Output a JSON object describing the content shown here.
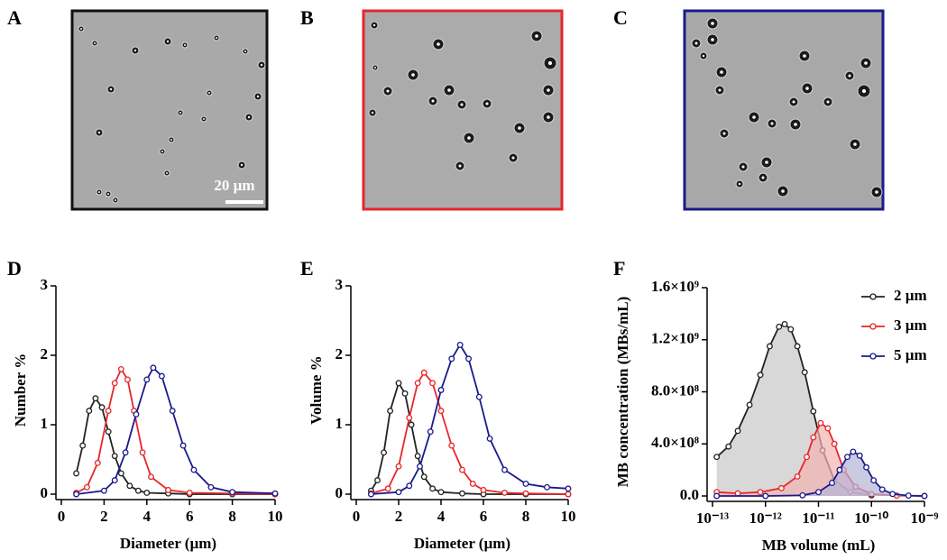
{
  "micrographs": [
    {
      "panel": "A",
      "scale_bar": "20 µm"
    },
    {
      "panel": "B"
    },
    {
      "panel": "C"
    }
  ],
  "chart_data": [
    {
      "type": "line",
      "panel": "D",
      "xlabel": "Diameter (µm)",
      "ylabel": "Number %",
      "xlim": [
        0,
        10
      ],
      "ylim": [
        0,
        3
      ],
      "xticks": [
        0,
        2,
        4,
        6,
        8,
        10
      ],
      "yticks": [
        0,
        1,
        2,
        3
      ],
      "series": [
        {
          "color": "#222222",
          "x": [
            0.7,
            1.0,
            1.3,
            1.6,
            1.9,
            2.2,
            2.5,
            2.8,
            3.2,
            3.6,
            4,
            5,
            6,
            8,
            10
          ],
          "values": [
            0.3,
            0.7,
            1.2,
            1.38,
            1.25,
            0.9,
            0.55,
            0.3,
            0.12,
            0.05,
            0.02,
            0.01,
            0,
            0,
            0
          ]
        },
        {
          "color": "#e8262a",
          "x": [
            0.7,
            1.2,
            1.7,
            2.2,
            2.5,
            2.8,
            3.1,
            3.4,
            3.8,
            4.2,
            5,
            6,
            8,
            10
          ],
          "values": [
            0.02,
            0.1,
            0.45,
            1.2,
            1.6,
            1.8,
            1.65,
            1.2,
            0.6,
            0.25,
            0.06,
            0.02,
            0.01,
            0
          ]
        },
        {
          "color": "#1a1a8c",
          "x": [
            0.7,
            2,
            2.5,
            3,
            3.5,
            4,
            4.3,
            4.7,
            5.2,
            5.7,
            6.2,
            7,
            8,
            10
          ],
          "values": [
            0,
            0.05,
            0.2,
            0.6,
            1.15,
            1.65,
            1.82,
            1.7,
            1.2,
            0.7,
            0.35,
            0.1,
            0.03,
            0.01
          ]
        }
      ]
    },
    {
      "type": "line",
      "panel": "E",
      "xlabel": "Diameter (µm)",
      "ylabel": "Volume %",
      "xlim": [
        0,
        10
      ],
      "ylim": [
        0,
        3
      ],
      "xticks": [
        0,
        2,
        4,
        6,
        8,
        10
      ],
      "yticks": [
        0,
        1,
        2,
        3
      ],
      "series": [
        {
          "color": "#222222",
          "x": [
            0.7,
            1.0,
            1.3,
            1.6,
            2.0,
            2.3,
            2.6,
            2.9,
            3.2,
            3.6,
            4,
            5,
            6,
            8,
            10
          ],
          "values": [
            0.05,
            0.2,
            0.6,
            1.2,
            1.6,
            1.45,
            1.0,
            0.55,
            0.25,
            0.08,
            0.03,
            0.01,
            0,
            0,
            0
          ]
        },
        {
          "color": "#e8262a",
          "x": [
            0.7,
            1.5,
            2.0,
            2.5,
            2.9,
            3.2,
            3.6,
            4.0,
            4.5,
            5,
            5.5,
            6,
            7,
            8,
            10
          ],
          "values": [
            0.01,
            0.08,
            0.4,
            1.1,
            1.6,
            1.75,
            1.6,
            1.2,
            0.7,
            0.35,
            0.15,
            0.06,
            0.02,
            0.01,
            0
          ]
        },
        {
          "color": "#1a1a8c",
          "x": [
            0.7,
            2,
            2.5,
            3,
            3.5,
            4,
            4.5,
            4.9,
            5.3,
            5.8,
            6.3,
            7,
            8,
            9,
            10
          ],
          "values": [
            0,
            0.03,
            0.12,
            0.4,
            0.9,
            1.5,
            1.95,
            2.15,
            1.95,
            1.4,
            0.8,
            0.35,
            0.15,
            0.1,
            0.08
          ]
        }
      ]
    },
    {
      "type": "line",
      "panel": "F",
      "xlabel": "MB volume (mL)",
      "ylabel": "MB concentration (MBs/mL)",
      "xscale": "log",
      "fill": true,
      "legend": "upper right",
      "xlim": [
        1e-13,
        1e-09
      ],
      "ylim": [
        0,
        1600000000
      ],
      "xticks": [
        {
          "value": 1e-13,
          "label": "10⁻¹³"
        },
        {
          "value": 1e-12,
          "label": "10⁻¹²"
        },
        {
          "value": 1e-11,
          "label": "10⁻¹¹"
        },
        {
          "value": 1e-10,
          "label": "10⁻¹⁰"
        },
        {
          "value": 1e-09,
          "label": "10⁻⁹"
        }
      ],
      "yticks": [
        {
          "value": 0,
          "label": "0.0"
        },
        {
          "value": 400000000,
          "label": "4.0×10⁸"
        },
        {
          "value": 800000000,
          "label": "8.0×10⁸"
        },
        {
          "value": 1200000000,
          "label": "1.2×10⁹"
        },
        {
          "value": 1600000000,
          "label": "1.6×10⁹"
        }
      ],
      "series": [
        {
          "name": "2 µm",
          "color": "#222222",
          "fill_color": "#c8c8c8",
          "x": [
            1.2e-13,
            2e-13,
            3e-13,
            5e-13,
            8e-13,
            1.2e-12,
            1.8e-12,
            2.3e-12,
            3e-12,
            4e-12,
            5.5e-12,
            8e-12,
            1.2e-11,
            2e-11,
            4e-11,
            1e-10
          ],
          "values": [
            300000000,
            380000000,
            500000000,
            700000000,
            930000000,
            1150000000,
            1300000000,
            1320000000,
            1280000000,
            1150000000,
            950000000,
            650000000,
            350000000,
            120000000,
            30000000,
            5000000
          ]
        },
        {
          "name": "3 µm",
          "color": "#e8262a",
          "fill_color": "#f4b3b4",
          "x": [
            1.2e-13,
            3e-13,
            8e-13,
            2e-12,
            4e-12,
            6e-12,
            8e-12,
            1.1e-11,
            1.5e-11,
            2e-11,
            3e-11,
            5e-11,
            1e-10,
            3e-10,
            1e-09
          ],
          "values": [
            30000000,
            20000000,
            30000000,
            60000000,
            150000000,
            300000000,
            450000000,
            560000000,
            520000000,
            400000000,
            200000000,
            70000000,
            15000000,
            3000000,
            0
          ]
        },
        {
          "name": "5 µm",
          "color": "#1a1a8c",
          "fill_color": "#b3b3d6",
          "x": [
            1.2e-13,
            1e-12,
            5e-12,
            1e-11,
            1.8e-11,
            2.5e-11,
            3.5e-11,
            4.5e-11,
            6e-11,
            8e-11,
            1.1e-10,
            1.6e-10,
            2.5e-10,
            5e-10,
            1e-09
          ],
          "values": [
            0,
            0,
            5000000,
            30000000,
            100000000,
            200000000,
            300000000,
            340000000,
            310000000,
            220000000,
            120000000,
            50000000,
            15000000,
            3000000,
            0
          ]
        }
      ]
    }
  ]
}
